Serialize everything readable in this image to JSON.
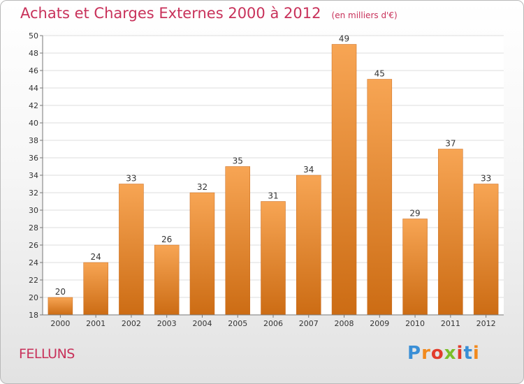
{
  "header": {
    "title": "Achats et Charges Externes 2000 à 2012",
    "subtitle": "(en milliers d'€)"
  },
  "footer": {
    "commune": "FELLUNS",
    "logo_text": "Proxiti",
    "logo_colors": [
      "#3a8fd6",
      "#f28a1e",
      "#e23c2c",
      "#7bbf2a",
      "#e23c2c",
      "#3a8fd6",
      "#f28a1e"
    ]
  },
  "chart_data": {
    "type": "bar",
    "title": "Achats et Charges Externes 2000 à 2012",
    "subtitle": "(en milliers d'€)",
    "categories": [
      "2000",
      "2001",
      "2002",
      "2003",
      "2004",
      "2005",
      "2006",
      "2007",
      "2008",
      "2009",
      "2010",
      "2011",
      "2012"
    ],
    "values": [
      20,
      24,
      33,
      26,
      32,
      35,
      31,
      34,
      49,
      45,
      29,
      37,
      33
    ],
    "ylim": [
      18,
      50
    ],
    "yticks": [
      18,
      20,
      22,
      24,
      26,
      28,
      30,
      32,
      34,
      36,
      38,
      40,
      42,
      44,
      46,
      48,
      50
    ],
    "grid": true,
    "legend": "none",
    "bar_color_top": "#f7a554",
    "bar_color_bottom": "#cc6c14",
    "grid_color": "#dcdcdc",
    "text_color": "#333333"
  }
}
